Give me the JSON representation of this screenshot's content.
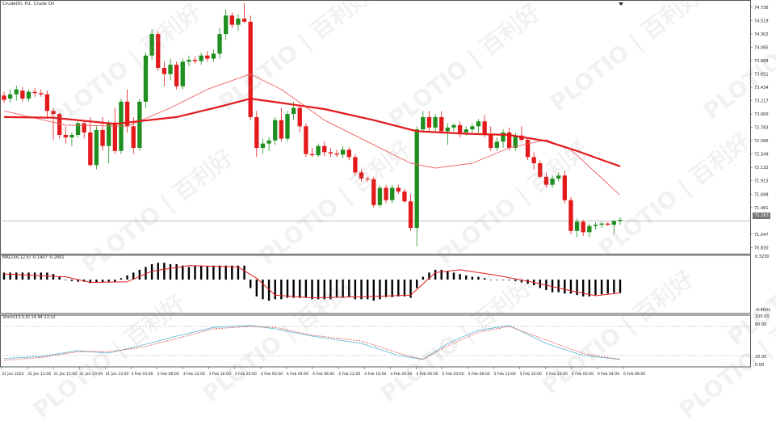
{
  "header": {
    "symbol_label": "CrudeOil, H1:  Crude Oil"
  },
  "macd_panel": {
    "label": "MACD(6,12,5) -0.1407 -0.2001",
    "scale_top": "0.3230",
    "scale_bottom": "-0.4601"
  },
  "stoch_panel": {
    "label": "Stoch(13,5,8) 14.44 13.52",
    "scale_top": "100.00",
    "scale_80": "80.00",
    "scale_20": "20.00",
    "scale_bottom": "0.00"
  },
  "current_price": "71.263",
  "watermark": {
    "brand_cn": "百利好",
    "brand_en": "PLOTIO"
  },
  "colors": {
    "bull": "#1f8f1f",
    "bear": "#e31a1c",
    "ma_thick": "#e31a1c",
    "ma_thin": "#f06060",
    "macd_signal": "#e31a1c",
    "stoch_main": "#4fb6d0",
    "stoch_signal": "#e34040"
  },
  "chart_data": {
    "type": "candlestick",
    "title": "CrudeOil, H1:  Crude Oil",
    "price_axis_labels": [
      "74.736",
      "74.519",
      "74.302",
      "74.085",
      "73.868",
      "73.651",
      "73.434",
      "73.217",
      "73.000",
      "72.783",
      "72.566",
      "72.349",
      "72.132",
      "71.915",
      "71.698",
      "71.481",
      "71.047",
      "70.830"
    ],
    "ylim": [
      70.73,
      74.8
    ],
    "time_axis_labels": [
      "31 Jan 2025",
      "31 Jan 11:00",
      "31 Jan 15:00",
      "31 Jan 19:00",
      "31 Jan 23:00",
      "3 Feb 03:00",
      "3 Feb 08:00",
      "3 Feb 12:00",
      "3 Feb 16:00",
      "3 Feb 20:00",
      "4 Feb 00:00",
      "4 Feb 04:00",
      "4 Feb 08:00",
      "4 Feb 12:00",
      "4 Feb 16:00",
      "4 Feb 20:00",
      "5 Feb 00:00",
      "5 Feb 04:00",
      "5 Feb 08:00",
      "5 Feb 12:00",
      "5 Feb 16:00",
      "5 Feb 20:00",
      "6 Feb 00:00",
      "6 Feb 04:00",
      "6 Feb 08:00"
    ],
    "candles": [
      {
        "o": 73.3,
        "h": 73.36,
        "l": 73.18,
        "c": 73.23
      },
      {
        "o": 73.25,
        "h": 73.4,
        "l": 73.18,
        "c": 73.32
      },
      {
        "o": 73.32,
        "h": 73.46,
        "l": 73.22,
        "c": 73.4
      },
      {
        "o": 73.38,
        "h": 73.44,
        "l": 73.2,
        "c": 73.25
      },
      {
        "o": 73.25,
        "h": 73.4,
        "l": 73.2,
        "c": 73.36
      },
      {
        "o": 73.36,
        "h": 73.42,
        "l": 73.28,
        "c": 73.34
      },
      {
        "o": 73.34,
        "h": 73.4,
        "l": 73.28,
        "c": 73.32
      },
      {
        "o": 73.32,
        "h": 73.38,
        "l": 72.92,
        "c": 73.05
      },
      {
        "o": 73.05,
        "h": 73.1,
        "l": 72.58,
        "c": 73.0
      },
      {
        "o": 73.0,
        "h": 73.02,
        "l": 72.6,
        "c": 72.66
      },
      {
        "o": 72.66,
        "h": 72.8,
        "l": 72.52,
        "c": 72.62
      },
      {
        "o": 72.62,
        "h": 72.7,
        "l": 72.48,
        "c": 72.66
      },
      {
        "o": 72.66,
        "h": 72.88,
        "l": 72.62,
        "c": 72.85
      },
      {
        "o": 72.85,
        "h": 72.9,
        "l": 72.6,
        "c": 72.7
      },
      {
        "o": 72.7,
        "h": 72.95,
        "l": 72.15,
        "c": 72.17
      },
      {
        "o": 72.17,
        "h": 72.8,
        "l": 72.1,
        "c": 72.74
      },
      {
        "o": 72.74,
        "h": 72.95,
        "l": 72.4,
        "c": 72.48
      },
      {
        "o": 72.48,
        "h": 72.9,
        "l": 72.2,
        "c": 72.86
      },
      {
        "o": 72.86,
        "h": 73.1,
        "l": 72.35,
        "c": 72.4
      },
      {
        "o": 72.4,
        "h": 73.25,
        "l": 72.35,
        "c": 73.2
      },
      {
        "o": 73.2,
        "h": 73.4,
        "l": 72.7,
        "c": 72.8
      },
      {
        "o": 72.8,
        "h": 72.95,
        "l": 72.35,
        "c": 72.45
      },
      {
        "o": 72.45,
        "h": 73.25,
        "l": 72.4,
        "c": 73.2
      },
      {
        "o": 73.2,
        "h": 74.0,
        "l": 73.1,
        "c": 73.95
      },
      {
        "o": 73.95,
        "h": 74.38,
        "l": 73.88,
        "c": 74.3
      },
      {
        "o": 74.3,
        "h": 74.35,
        "l": 73.7,
        "c": 73.75
      },
      {
        "o": 73.75,
        "h": 73.85,
        "l": 73.45,
        "c": 73.65
      },
      {
        "o": 73.65,
        "h": 73.9,
        "l": 73.55,
        "c": 73.8
      },
      {
        "o": 73.8,
        "h": 73.85,
        "l": 73.4,
        "c": 73.45
      },
      {
        "o": 73.45,
        "h": 73.9,
        "l": 73.4,
        "c": 73.85
      },
      {
        "o": 73.85,
        "h": 73.95,
        "l": 73.78,
        "c": 73.88
      },
      {
        "o": 73.88,
        "h": 73.94,
        "l": 73.82,
        "c": 73.86
      },
      {
        "o": 73.86,
        "h": 74.0,
        "l": 73.8,
        "c": 73.95
      },
      {
        "o": 73.95,
        "h": 74.02,
        "l": 73.85,
        "c": 73.9
      },
      {
        "o": 73.9,
        "h": 74.05,
        "l": 73.85,
        "c": 73.98
      },
      {
        "o": 73.98,
        "h": 74.4,
        "l": 73.9,
        "c": 74.3
      },
      {
        "o": 74.3,
        "h": 74.7,
        "l": 74.2,
        "c": 74.6
      },
      {
        "o": 74.6,
        "h": 74.65,
        "l": 74.4,
        "c": 74.45
      },
      {
        "o": 74.45,
        "h": 74.62,
        "l": 74.35,
        "c": 74.55
      },
      {
        "o": 74.55,
        "h": 74.8,
        "l": 74.48,
        "c": 74.5
      },
      {
        "o": 74.5,
        "h": 74.6,
        "l": 72.9,
        "c": 72.95
      },
      {
        "o": 72.95,
        "h": 73.05,
        "l": 72.3,
        "c": 72.45
      },
      {
        "o": 72.45,
        "h": 72.6,
        "l": 72.35,
        "c": 72.52
      },
      {
        "o": 72.52,
        "h": 72.62,
        "l": 72.4,
        "c": 72.57
      },
      {
        "o": 72.57,
        "h": 72.95,
        "l": 72.5,
        "c": 72.9
      },
      {
        "o": 72.9,
        "h": 73.1,
        "l": 72.55,
        "c": 72.6
      },
      {
        "o": 72.6,
        "h": 73.05,
        "l": 72.55,
        "c": 73.0
      },
      {
        "o": 73.0,
        "h": 73.2,
        "l": 72.9,
        "c": 73.1
      },
      {
        "o": 73.1,
        "h": 73.15,
        "l": 72.7,
        "c": 72.8
      },
      {
        "o": 72.8,
        "h": 72.85,
        "l": 72.3,
        "c": 72.35
      },
      {
        "o": 72.35,
        "h": 72.45,
        "l": 72.3,
        "c": 72.33
      },
      {
        "o": 72.33,
        "h": 72.52,
        "l": 72.3,
        "c": 72.48
      },
      {
        "o": 72.48,
        "h": 72.55,
        "l": 72.32,
        "c": 72.38
      },
      {
        "o": 72.38,
        "h": 72.45,
        "l": 72.3,
        "c": 72.36
      },
      {
        "o": 72.36,
        "h": 72.42,
        "l": 72.3,
        "c": 72.34
      },
      {
        "o": 72.34,
        "h": 72.48,
        "l": 72.28,
        "c": 72.42
      },
      {
        "o": 72.42,
        "h": 72.46,
        "l": 72.25,
        "c": 72.3
      },
      {
        "o": 72.3,
        "h": 72.35,
        "l": 72.0,
        "c": 72.05
      },
      {
        "o": 72.05,
        "h": 72.1,
        "l": 71.9,
        "c": 71.95
      },
      {
        "o": 71.95,
        "h": 71.98,
        "l": 71.9,
        "c": 71.94
      },
      {
        "o": 71.94,
        "h": 71.98,
        "l": 71.48,
        "c": 71.52
      },
      {
        "o": 71.52,
        "h": 71.84,
        "l": 71.48,
        "c": 71.8
      },
      {
        "o": 71.8,
        "h": 71.85,
        "l": 71.55,
        "c": 71.6
      },
      {
        "o": 71.6,
        "h": 71.85,
        "l": 71.55,
        "c": 71.8
      },
      {
        "o": 71.8,
        "h": 71.85,
        "l": 71.7,
        "c": 71.74
      },
      {
        "o": 71.74,
        "h": 71.78,
        "l": 71.55,
        "c": 71.58
      },
      {
        "o": 71.58,
        "h": 71.7,
        "l": 71.1,
        "c": 71.15
      },
      {
        "o": 71.15,
        "h": 72.8,
        "l": 70.85,
        "c": 72.75
      },
      {
        "o": 72.75,
        "h": 73.05,
        "l": 72.7,
        "c": 72.95
      },
      {
        "o": 72.95,
        "h": 73.05,
        "l": 72.72,
        "c": 72.78
      },
      {
        "o": 72.78,
        "h": 73.0,
        "l": 72.7,
        "c": 72.95
      },
      {
        "o": 72.95,
        "h": 73.05,
        "l": 72.68,
        "c": 72.72
      },
      {
        "o": 72.72,
        "h": 72.85,
        "l": 72.5,
        "c": 72.78
      },
      {
        "o": 72.78,
        "h": 72.85,
        "l": 72.72,
        "c": 72.82
      },
      {
        "o": 72.82,
        "h": 72.88,
        "l": 72.62,
        "c": 72.7
      },
      {
        "o": 72.7,
        "h": 72.8,
        "l": 72.65,
        "c": 72.75
      },
      {
        "o": 72.75,
        "h": 72.85,
        "l": 72.7,
        "c": 72.8
      },
      {
        "o": 72.8,
        "h": 72.92,
        "l": 72.7,
        "c": 72.88
      },
      {
        "o": 72.88,
        "h": 72.98,
        "l": 72.62,
        "c": 72.66
      },
      {
        "o": 72.66,
        "h": 72.8,
        "l": 72.4,
        "c": 72.45
      },
      {
        "o": 72.45,
        "h": 72.62,
        "l": 72.4,
        "c": 72.55
      },
      {
        "o": 72.55,
        "h": 72.75,
        "l": 72.45,
        "c": 72.7
      },
      {
        "o": 72.7,
        "h": 72.78,
        "l": 72.4,
        "c": 72.45
      },
      {
        "o": 72.45,
        "h": 72.7,
        "l": 72.4,
        "c": 72.65
      },
      {
        "o": 72.65,
        "h": 72.8,
        "l": 72.55,
        "c": 72.58
      },
      {
        "o": 72.58,
        "h": 72.62,
        "l": 72.25,
        "c": 72.3
      },
      {
        "o": 72.3,
        "h": 72.38,
        "l": 72.1,
        "c": 72.2
      },
      {
        "o": 72.2,
        "h": 72.25,
        "l": 71.95,
        "c": 71.98
      },
      {
        "o": 71.98,
        "h": 72.05,
        "l": 71.8,
        "c": 71.85
      },
      {
        "o": 71.85,
        "h": 72.0,
        "l": 71.8,
        "c": 71.95
      },
      {
        "o": 71.95,
        "h": 72.05,
        "l": 71.9,
        "c": 72.0
      },
      {
        "o": 72.0,
        "h": 72.08,
        "l": 71.55,
        "c": 71.6
      },
      {
        "o": 71.6,
        "h": 71.65,
        "l": 71.05,
        "c": 71.1
      },
      {
        "o": 71.1,
        "h": 71.3,
        "l": 71.0,
        "c": 71.25
      },
      {
        "o": 71.25,
        "h": 71.28,
        "l": 71.02,
        "c": 71.08
      },
      {
        "o": 71.08,
        "h": 71.22,
        "l": 71.0,
        "c": 71.18
      },
      {
        "o": 71.18,
        "h": 71.24,
        "l": 71.12,
        "c": 71.2
      },
      {
        "o": 71.2,
        "h": 71.25,
        "l": 71.15,
        "c": 71.22
      },
      {
        "o": 71.22,
        "h": 71.24,
        "l": 71.18,
        "c": 71.2
      },
      {
        "o": 71.2,
        "h": 71.28,
        "l": 71.05,
        "c": 71.26
      },
      {
        "o": 71.26,
        "h": 71.32,
        "l": 71.2,
        "c": 71.28
      }
    ],
    "ma_fast": [
      [
        0,
        73.05
      ],
      [
        10,
        72.82
      ],
      [
        20,
        72.8
      ],
      [
        27,
        73.1
      ],
      [
        33,
        73.4
      ],
      [
        40,
        73.65
      ],
      [
        45,
        73.4
      ],
      [
        52,
        72.9
      ],
      [
        60,
        72.5
      ],
      [
        66,
        72.2
      ],
      [
        70,
        72.12
      ],
      [
        76,
        72.2
      ],
      [
        82,
        72.45
      ],
      [
        88,
        72.58
      ],
      [
        92,
        72.42
      ],
      [
        96,
        72.05
      ],
      [
        100,
        71.68
      ]
    ],
    "ma_slow": [
      [
        0,
        72.95
      ],
      [
        8,
        72.94
      ],
      [
        18,
        72.84
      ],
      [
        28,
        72.95
      ],
      [
        35,
        73.12
      ],
      [
        40,
        73.25
      ],
      [
        45,
        73.18
      ],
      [
        52,
        73.08
      ],
      [
        60,
        72.9
      ],
      [
        67,
        72.72
      ],
      [
        75,
        72.68
      ],
      [
        82,
        72.66
      ],
      [
        88,
        72.56
      ],
      [
        93,
        72.4
      ],
      [
        98,
        72.22
      ],
      [
        100,
        72.15
      ]
    ],
    "macd": {
      "histogram": [
        0.1,
        0.1,
        0.1,
        0.1,
        0.1,
        0.1,
        0.1,
        0.1,
        0.08,
        0.04,
        0.0,
        -0.02,
        -0.03,
        -0.03,
        -0.05,
        -0.04,
        -0.04,
        -0.03,
        -0.03,
        0.02,
        0.06,
        0.1,
        0.14,
        0.18,
        0.22,
        0.24,
        0.24,
        0.22,
        0.22,
        0.2,
        0.18,
        0.2,
        0.2,
        0.19,
        0.2,
        0.2,
        0.2,
        0.2,
        0.2,
        0.2,
        -0.12,
        -0.24,
        -0.28,
        -0.3,
        -0.28,
        -0.28,
        -0.26,
        -0.26,
        -0.26,
        -0.26,
        -0.28,
        -0.28,
        -0.28,
        -0.28,
        -0.26,
        -0.26,
        -0.25,
        -0.28,
        -0.28,
        -0.28,
        -0.3,
        -0.28,
        -0.25,
        -0.25,
        -0.24,
        -0.24,
        -0.26,
        -0.12,
        0.04,
        0.1,
        0.14,
        0.14,
        0.12,
        0.1,
        0.08,
        0.06,
        0.04,
        0.04,
        0.02,
        0.0,
        0.0,
        0.0,
        -0.01,
        -0.02,
        -0.04,
        -0.06,
        -0.08,
        -0.12,
        -0.15,
        -0.18,
        -0.18,
        -0.2,
        -0.2,
        -0.22,
        -0.24,
        -0.24,
        -0.22,
        -0.21,
        -0.2,
        -0.19,
        -0.19
      ],
      "signal": [
        [
          0,
          0.08
        ],
        [
          10,
          0.04
        ],
        [
          14,
          -0.04
        ],
        [
          20,
          -0.03
        ],
        [
          24,
          0.12
        ],
        [
          30,
          0.2
        ],
        [
          38,
          0.18
        ],
        [
          41,
          0.02
        ],
        [
          44,
          -0.22
        ],
        [
          50,
          -0.26
        ],
        [
          60,
          -0.24
        ],
        [
          66,
          -0.22
        ],
        [
          70,
          0.1
        ],
        [
          74,
          0.14
        ],
        [
          80,
          0.06
        ],
        [
          86,
          -0.04
        ],
        [
          92,
          -0.16
        ],
        [
          96,
          -0.23
        ],
        [
          100,
          -0.19
        ]
      ]
    },
    "stoch": {
      "main": [
        [
          0,
          14
        ],
        [
          6,
          18
        ],
        [
          12,
          30
        ],
        [
          17,
          25
        ],
        [
          22,
          40
        ],
        [
          28,
          60
        ],
        [
          34,
          78
        ],
        [
          40,
          82
        ],
        [
          44,
          75
        ],
        [
          50,
          60
        ],
        [
          58,
          45
        ],
        [
          64,
          20
        ],
        [
          68,
          12
        ],
        [
          72,
          45
        ],
        [
          77,
          72
        ],
        [
          82,
          82
        ],
        [
          88,
          45
        ],
        [
          94,
          20
        ],
        [
          100,
          12
        ]
      ],
      "signal": [
        [
          0,
          10
        ],
        [
          6,
          16
        ],
        [
          12,
          28
        ],
        [
          17,
          28
        ],
        [
          22,
          36
        ],
        [
          28,
          55
        ],
        [
          34,
          75
        ],
        [
          40,
          80
        ],
        [
          44,
          78
        ],
        [
          50,
          62
        ],
        [
          58,
          50
        ],
        [
          64,
          25
        ],
        [
          68,
          12
        ],
        [
          72,
          40
        ],
        [
          77,
          68
        ],
        [
          82,
          80
        ],
        [
          88,
          52
        ],
        [
          94,
          24
        ],
        [
          100,
          12
        ]
      ]
    }
  }
}
